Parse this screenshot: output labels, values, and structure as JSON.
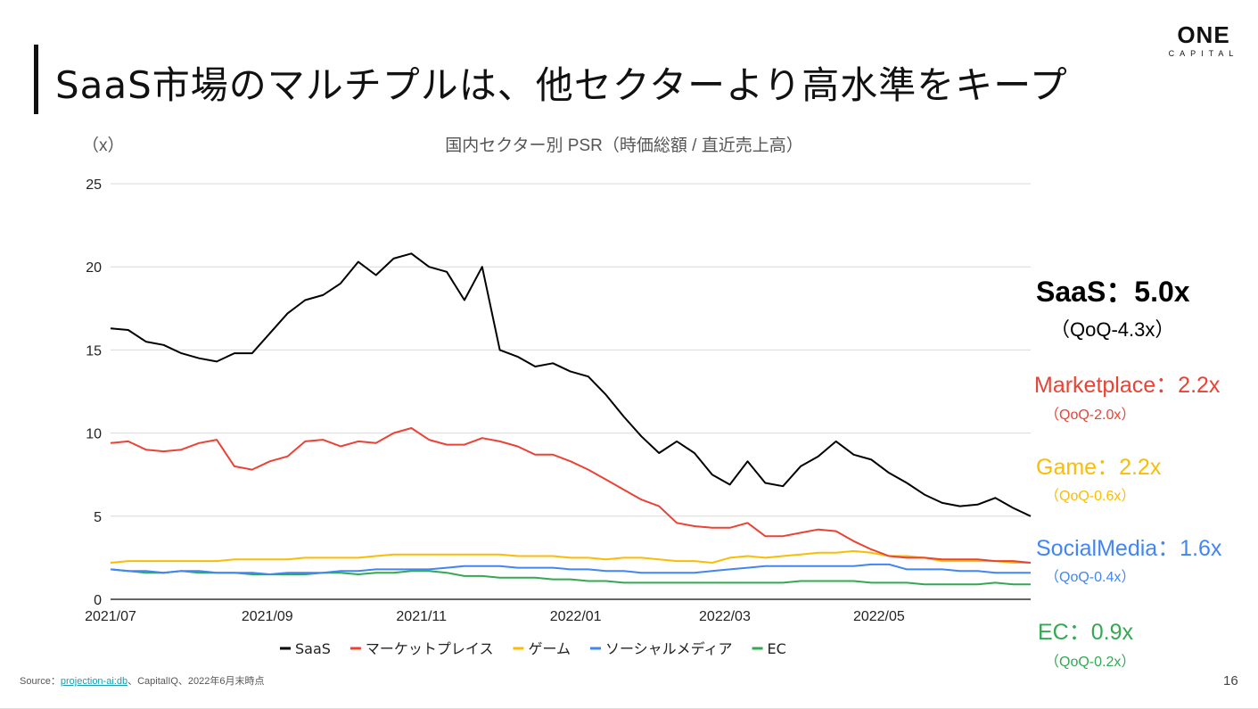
{
  "title": "SaaS市場のマルチプルは、他セクターより高水準をキープ",
  "logo": {
    "main": "ONE",
    "sub": "CAPITAL"
  },
  "footer": {
    "source_label": "Source：",
    "source_link": "projection-ai:db",
    "source_rest": "、CapitalIQ、2022年6月末時点",
    "page": "16"
  },
  "annotations": [
    {
      "name": "SaaS：5.0x",
      "qoq": "（QoQ-4.3x）",
      "color": "#000000"
    },
    {
      "name": "Marketplace：2.2x",
      "qoq": "（QoQ-2.0x）",
      "color": "#ea4335"
    },
    {
      "name": "Game：2.2x",
      "qoq": "（QoQ-0.6x）",
      "color": "#fbbc04"
    },
    {
      "name": "SocialMedia：1.6x",
      "qoq": "（QoQ-0.4x）",
      "color": "#4285f4"
    },
    {
      "name": "EC：0.9x",
      "qoq": "（QoQ-0.2x）",
      "color": "#34a853"
    }
  ],
  "chart_data": {
    "type": "line",
    "title": "国内セクター別 PSR（時価総額 / 直近売上高）",
    "ylabel": "（x）",
    "ylim": [
      0,
      25
    ],
    "yticks": [
      "0",
      "5",
      "10",
      "15",
      "20",
      "25"
    ],
    "xticks": [
      {
        "label": "2021/07",
        "date": "2021-07-01"
      },
      {
        "label": "2021/09",
        "date": "2021-09-01"
      },
      {
        "label": "2021/11",
        "date": "2021-11-01"
      },
      {
        "label": "2022/01",
        "date": "2022-01-01"
      },
      {
        "label": "2022/03",
        "date": "2022-03-01"
      },
      {
        "label": "2022/05",
        "date": "2022-05-01"
      }
    ],
    "xlim": [
      "2021-07-01",
      "2022-06-30"
    ],
    "grid": true,
    "legend": "bottom",
    "x": [
      "2021-07-01",
      "2021-07-08",
      "2021-07-15",
      "2021-07-22",
      "2021-07-29",
      "2021-08-05",
      "2021-08-12",
      "2021-08-19",
      "2021-08-26",
      "2021-09-02",
      "2021-09-09",
      "2021-09-16",
      "2021-09-23",
      "2021-09-30",
      "2021-10-07",
      "2021-10-14",
      "2021-10-21",
      "2021-10-28",
      "2021-11-04",
      "2021-11-11",
      "2021-11-18",
      "2021-11-25",
      "2021-12-02",
      "2021-12-09",
      "2021-12-16",
      "2021-12-23",
      "2021-12-30",
      "2022-01-06",
      "2022-01-13",
      "2022-01-20",
      "2022-01-27",
      "2022-02-03",
      "2022-02-10",
      "2022-02-17",
      "2022-02-24",
      "2022-03-03",
      "2022-03-10",
      "2022-03-17",
      "2022-03-24",
      "2022-03-31",
      "2022-04-07",
      "2022-04-14",
      "2022-04-21",
      "2022-04-28",
      "2022-05-05",
      "2022-05-12",
      "2022-05-19",
      "2022-05-26",
      "2022-06-02",
      "2022-06-09",
      "2022-06-16",
      "2022-06-23",
      "2022-06-30"
    ],
    "series": [
      {
        "name": "SaaS",
        "color": "#000000",
        "values": [
          16.3,
          16.2,
          15.5,
          15.3,
          14.8,
          14.5,
          14.3,
          14.8,
          14.8,
          16.0,
          17.2,
          18.0,
          18.3,
          19.0,
          20.3,
          19.5,
          20.5,
          20.8,
          20.0,
          19.7,
          18.0,
          20.0,
          15.0,
          14.6,
          14.0,
          14.2,
          13.7,
          13.4,
          12.3,
          11.0,
          9.8,
          8.8,
          9.5,
          8.8,
          7.5,
          6.9,
          8.3,
          7.0,
          6.8,
          8.0,
          8.6,
          9.5,
          8.7,
          8.4,
          7.6,
          7.0,
          6.3,
          5.8,
          5.6,
          5.7,
          6.1,
          5.5,
          5.0
        ]
      },
      {
        "name": "マーケットプレイス",
        "color": "#ea4335",
        "values": [
          9.4,
          9.5,
          9.0,
          8.9,
          9.0,
          9.4,
          9.6,
          8.0,
          7.8,
          8.3,
          8.6,
          9.5,
          9.6,
          9.2,
          9.5,
          9.4,
          10.0,
          10.3,
          9.6,
          9.3,
          9.3,
          9.7,
          9.5,
          9.2,
          8.7,
          8.7,
          8.3,
          7.8,
          7.2,
          6.6,
          6.0,
          5.6,
          4.6,
          4.4,
          4.3,
          4.3,
          4.6,
          3.8,
          3.8,
          4.0,
          4.2,
          4.1,
          3.5,
          3.0,
          2.6,
          2.5,
          2.5,
          2.4,
          2.4,
          2.4,
          2.3,
          2.3,
          2.2
        ]
      },
      {
        "name": "ゲーム",
        "color": "#fbbc04",
        "values": [
          2.2,
          2.3,
          2.3,
          2.3,
          2.3,
          2.3,
          2.3,
          2.4,
          2.4,
          2.4,
          2.4,
          2.5,
          2.5,
          2.5,
          2.5,
          2.6,
          2.7,
          2.7,
          2.7,
          2.7,
          2.7,
          2.7,
          2.7,
          2.6,
          2.6,
          2.6,
          2.5,
          2.5,
          2.4,
          2.5,
          2.5,
          2.4,
          2.3,
          2.3,
          2.2,
          2.5,
          2.6,
          2.5,
          2.6,
          2.7,
          2.8,
          2.8,
          2.9,
          2.8,
          2.6,
          2.6,
          2.5,
          2.3,
          2.3,
          2.3,
          2.3,
          2.2,
          2.2
        ]
      },
      {
        "name": "ソーシャルメディア",
        "color": "#4285f4",
        "values": [
          1.8,
          1.7,
          1.7,
          1.6,
          1.7,
          1.7,
          1.6,
          1.6,
          1.6,
          1.5,
          1.6,
          1.6,
          1.6,
          1.7,
          1.7,
          1.8,
          1.8,
          1.8,
          1.8,
          1.9,
          2.0,
          2.0,
          2.0,
          1.9,
          1.9,
          1.9,
          1.8,
          1.8,
          1.7,
          1.7,
          1.6,
          1.6,
          1.6,
          1.6,
          1.7,
          1.8,
          1.9,
          2.0,
          2.0,
          2.0,
          2.0,
          2.0,
          2.0,
          2.1,
          2.1,
          1.8,
          1.8,
          1.8,
          1.7,
          1.7,
          1.6,
          1.6,
          1.6
        ]
      },
      {
        "name": "EC",
        "color": "#34a853",
        "values": [
          1.8,
          1.7,
          1.6,
          1.6,
          1.7,
          1.6,
          1.6,
          1.6,
          1.5,
          1.5,
          1.5,
          1.5,
          1.6,
          1.6,
          1.5,
          1.6,
          1.6,
          1.7,
          1.7,
          1.6,
          1.4,
          1.4,
          1.3,
          1.3,
          1.3,
          1.2,
          1.2,
          1.1,
          1.1,
          1.0,
          1.0,
          1.0,
          1.0,
          1.0,
          1.0,
          1.0,
          1.0,
          1.0,
          1.0,
          1.1,
          1.1,
          1.1,
          1.1,
          1.0,
          1.0,
          1.0,
          0.9,
          0.9,
          0.9,
          0.9,
          1.0,
          0.9,
          0.9
        ]
      }
    ]
  }
}
